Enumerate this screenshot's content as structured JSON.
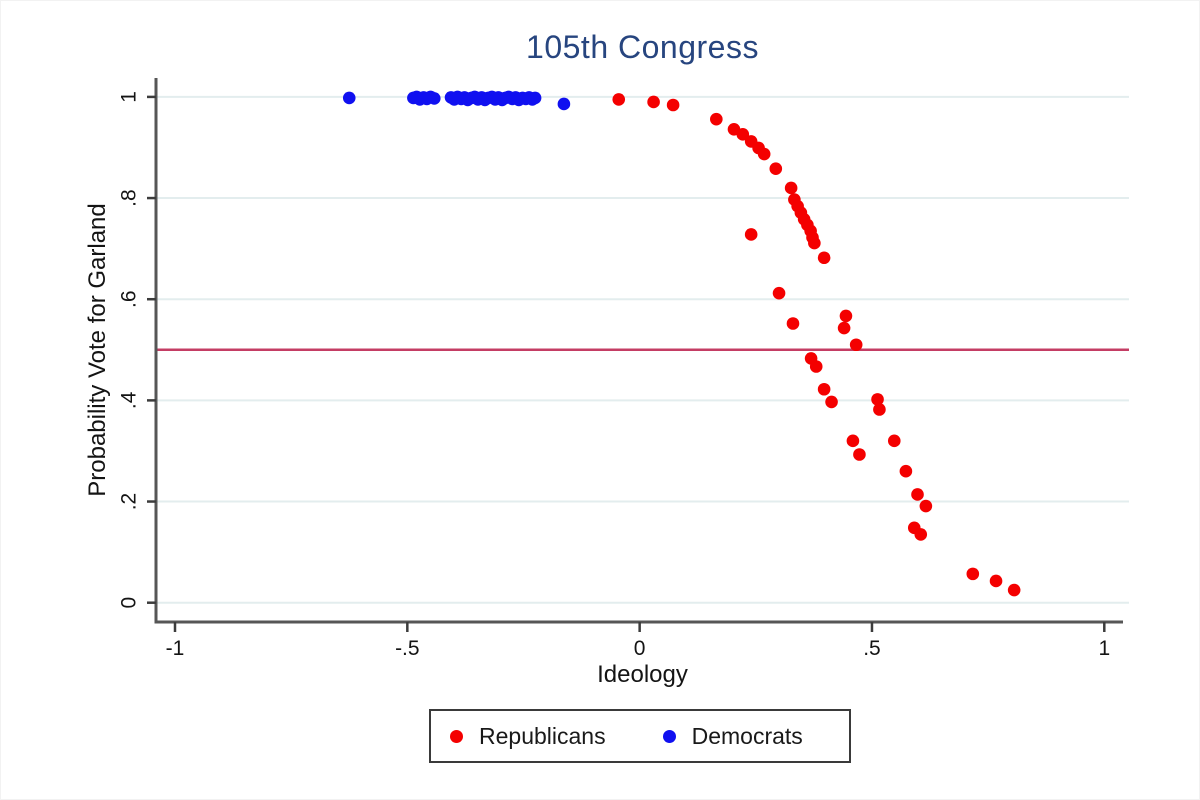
{
  "chart_data": {
    "type": "scatter",
    "title": "105th Congress",
    "xlabel": "Ideology",
    "ylabel": "Probability Vote for Garland",
    "xlim": [
      -1.04,
      1.05
    ],
    "ylim": [
      -0.04,
      1.04
    ],
    "grid": "horizontal",
    "x_ticks": {
      "values": [
        -1,
        -0.5,
        0,
        0.5,
        1
      ],
      "labels": [
        "-1",
        "-.5",
        "0",
        ".5",
        "1"
      ]
    },
    "y_ticks": {
      "values": [
        0,
        0.2,
        0.4,
        0.6,
        0.8,
        1
      ],
      "labels": [
        "0",
        ".2",
        ".4",
        ".6",
        ".8",
        "1"
      ]
    },
    "ref_line": {
      "y": 0.5,
      "color": "#c43d64"
    },
    "legend": {
      "position": "bottom"
    },
    "marker_radius_px": 6.3,
    "series": [
      {
        "name": "Republicans",
        "color": "#f40000",
        "points": [
          [
            -0.045,
            0.995
          ],
          [
            0.03,
            0.99
          ],
          [
            0.072,
            0.984
          ],
          [
            0.165,
            0.956
          ],
          [
            0.203,
            0.936
          ],
          [
            0.222,
            0.926
          ],
          [
            0.24,
            0.912
          ],
          [
            0.256,
            0.899
          ],
          [
            0.268,
            0.887
          ],
          [
            0.293,
            0.858
          ],
          [
            0.24,
            0.728
          ],
          [
            0.326,
            0.82
          ],
          [
            0.333,
            0.797
          ],
          [
            0.34,
            0.784
          ],
          [
            0.347,
            0.771
          ],
          [
            0.354,
            0.758
          ],
          [
            0.361,
            0.747
          ],
          [
            0.368,
            0.735
          ],
          [
            0.372,
            0.722
          ],
          [
            0.376,
            0.711
          ],
          [
            0.397,
            0.682
          ],
          [
            0.3,
            0.612
          ],
          [
            0.33,
            0.552
          ],
          [
            0.444,
            0.567
          ],
          [
            0.44,
            0.543
          ],
          [
            0.466,
            0.51
          ],
          [
            0.369,
            0.483
          ],
          [
            0.38,
            0.467
          ],
          [
            0.397,
            0.422
          ],
          [
            0.413,
            0.397
          ],
          [
            0.512,
            0.402
          ],
          [
            0.516,
            0.382
          ],
          [
            0.459,
            0.32
          ],
          [
            0.473,
            0.293
          ],
          [
            0.548,
            0.32
          ],
          [
            0.573,
            0.26
          ],
          [
            0.598,
            0.214
          ],
          [
            0.616,
            0.191
          ],
          [
            0.591,
            0.148
          ],
          [
            0.605,
            0.135
          ],
          [
            0.717,
            0.057
          ],
          [
            0.767,
            0.043
          ],
          [
            0.806,
            0.025
          ]
        ]
      },
      {
        "name": "Democrats",
        "color": "#1010f0",
        "points": [
          [
            -0.625,
            0.998
          ],
          [
            -0.487,
            0.998
          ],
          [
            -0.48,
            1.0
          ],
          [
            -0.473,
            0.995
          ],
          [
            -0.465,
            0.999
          ],
          [
            -0.458,
            0.996
          ],
          [
            -0.45,
            1.0
          ],
          [
            -0.442,
            0.997
          ],
          [
            -0.406,
            0.999
          ],
          [
            -0.399,
            0.995
          ],
          [
            -0.392,
            1.0
          ],
          [
            -0.384,
            0.996
          ],
          [
            -0.377,
            0.999
          ],
          [
            -0.37,
            0.994
          ],
          [
            -0.362,
            0.998
          ],
          [
            -0.355,
            1.0
          ],
          [
            -0.348,
            0.995
          ],
          [
            -0.34,
            0.999
          ],
          [
            -0.333,
            0.994
          ],
          [
            -0.326,
            0.998
          ],
          [
            -0.318,
            1.0
          ],
          [
            -0.311,
            0.995
          ],
          [
            -0.304,
            0.999
          ],
          [
            -0.296,
            0.994
          ],
          [
            -0.289,
            0.998
          ],
          [
            -0.282,
            1.0
          ],
          [
            -0.274,
            0.996
          ],
          [
            -0.267,
            0.999
          ],
          [
            -0.26,
            0.994
          ],
          [
            -0.252,
            0.998
          ],
          [
            -0.245,
            0.996
          ],
          [
            -0.238,
            0.999
          ],
          [
            -0.231,
            0.995
          ],
          [
            -0.225,
            0.998
          ],
          [
            -0.163,
            0.986
          ]
        ]
      }
    ],
    "style": {
      "grid_color": "#e3edee",
      "axis_color": "#565656",
      "tick_color": "#3c3c3c",
      "tick_label_color": "#141414",
      "title_color": "#27457f",
      "background": "#ffffff"
    }
  },
  "legend_box": {
    "entries": [
      {
        "label": "Republicans",
        "color": "#f40000"
      },
      {
        "label": "Democrats",
        "color": "#1010f0"
      }
    ]
  }
}
